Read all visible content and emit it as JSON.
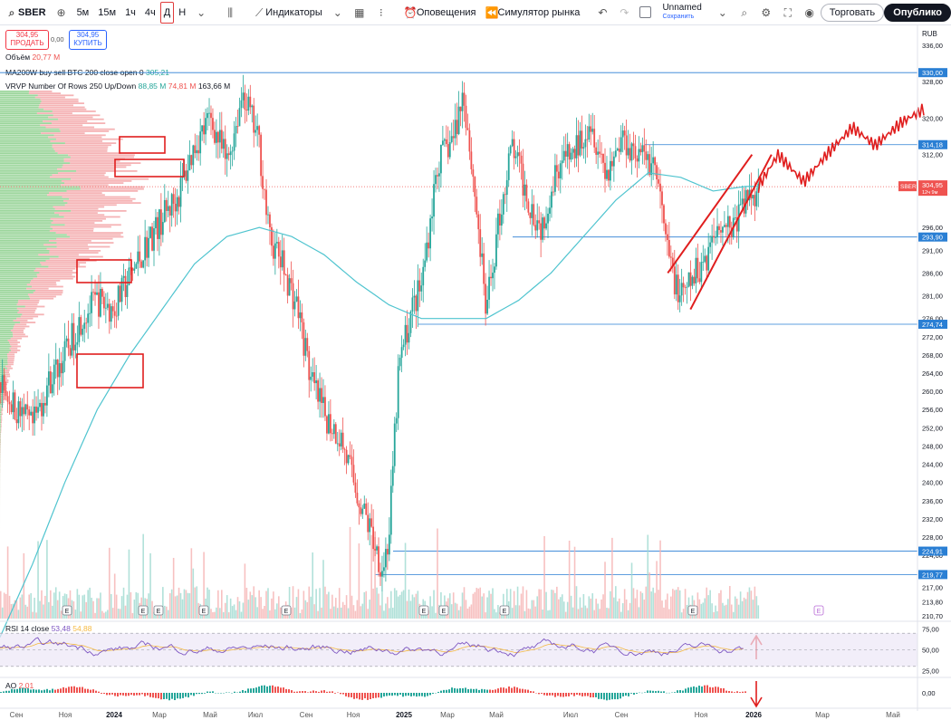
{
  "toolbar": {
    "symbol": "SBER",
    "intervals": [
      "5м",
      "15м",
      "1ч",
      "4ч",
      "Д",
      "Н"
    ],
    "active_interval": "Д",
    "indicators_label": "Индикаторы",
    "alerts_label": "Оповещения",
    "replay_label": "Симулятор рынка",
    "layout_name": "Unnamed",
    "layout_saved": "Сохранить",
    "trade_button": "Торговать",
    "publish_button": "Опублико"
  },
  "quote": {
    "sell_price": "304,95",
    "sell_label": "ПРОДАТЬ",
    "spread": "0,00",
    "buy_price": "304,95",
    "buy_label": "КУПИТЬ",
    "currency": "RUB"
  },
  "legends": {
    "volume_label": "Объём",
    "volume_value": "20,77 M",
    "ma_label": "MA200W buy sell BTC 200 close open 0",
    "ma_value": "305,21",
    "vrvp_label": "VRVP Number Of Rows 250 Up/Down",
    "vrvp_up": "88,85 M",
    "vrvp_down": "74,81 M",
    "vrvp_total": "163,66 M",
    "rsi_label": "RSI 14 close",
    "rsi_value": "53,48",
    "rsi_ma": "54,88",
    "ao_label": "AO",
    "ao_value": "2,01"
  },
  "colors": {
    "up": "#26a69a",
    "down": "#ef5350",
    "ma": "#4fc4cf",
    "level": "#2a7fd4",
    "annotation": "#e01e1e",
    "rsi": "#7e57c2",
    "rsi_ma": "#f5b942"
  },
  "chart_data": {
    "type": "candlestick",
    "symbol": "SBER",
    "ylim": [
      210.7,
      337
    ],
    "y_ticks": [
      "336,00",
      "328,00",
      "320,00",
      "312,00",
      "304,00",
      "296,00",
      "291,00",
      "286,00",
      "281,00",
      "276,00",
      "272,00",
      "268,00",
      "264,00",
      "260,00",
      "256,00",
      "252,00",
      "248,00",
      "244,00",
      "240,00",
      "236,00",
      "232,00",
      "228,00",
      "224,00",
      "220,00",
      "217,00",
      "213,80",
      "210,70"
    ],
    "x_ticks": [
      "Сен",
      "Ноя",
      "2024",
      "Мар",
      "Май",
      "Июл",
      "Сен",
      "Ноя",
      "2025",
      "Мар",
      "Май",
      "Июл",
      "Сен",
      "Ноя",
      "2026",
      "Мар",
      "Май"
    ],
    "close_path": [
      {
        "x": 0,
        "y": 262
      },
      {
        "x": 0.5,
        "y": 256
      },
      {
        "x": 1,
        "y": 252
      },
      {
        "x": 1.5,
        "y": 262
      },
      {
        "x": 2,
        "y": 268
      },
      {
        "x": 2.5,
        "y": 276
      },
      {
        "x": 3,
        "y": 280
      },
      {
        "x": 3.5,
        "y": 278
      },
      {
        "x": 4,
        "y": 285
      },
      {
        "x": 4.5,
        "y": 292
      },
      {
        "x": 5,
        "y": 298
      },
      {
        "x": 5.5,
        "y": 303
      },
      {
        "x": 6,
        "y": 314
      },
      {
        "x": 6.5,
        "y": 320
      },
      {
        "x": 7,
        "y": 310
      },
      {
        "x": 7.5,
        "y": 326
      },
      {
        "x": 8,
        "y": 314
      },
      {
        "x": 8.3,
        "y": 294
      },
      {
        "x": 8.7,
        "y": 288
      },
      {
        "x": 9.2,
        "y": 278
      },
      {
        "x": 9.6,
        "y": 262
      },
      {
        "x": 10,
        "y": 255
      },
      {
        "x": 10.5,
        "y": 250
      },
      {
        "x": 11,
        "y": 238
      },
      {
        "x": 11.5,
        "y": 228
      },
      {
        "x": 11.8,
        "y": 221
      },
      {
        "x": 12,
        "y": 228
      },
      {
        "x": 12.3,
        "y": 265
      },
      {
        "x": 12.7,
        "y": 278
      },
      {
        "x": 13,
        "y": 283
      },
      {
        "x": 13.5,
        "y": 310
      },
      {
        "x": 14,
        "y": 316
      },
      {
        "x": 14.3,
        "y": 326
      },
      {
        "x": 14.7,
        "y": 300
      },
      {
        "x": 15,
        "y": 277
      },
      {
        "x": 15.4,
        "y": 298
      },
      {
        "x": 15.8,
        "y": 314
      },
      {
        "x": 16.3,
        "y": 302
      },
      {
        "x": 16.7,
        "y": 296
      },
      {
        "x": 17.2,
        "y": 310
      },
      {
        "x": 17.7,
        "y": 312
      },
      {
        "x": 18.2,
        "y": 320
      },
      {
        "x": 18.7,
        "y": 308
      },
      {
        "x": 19.2,
        "y": 316
      },
      {
        "x": 19.7,
        "y": 312
      },
      {
        "x": 20.2,
        "y": 310
      },
      {
        "x": 20.6,
        "y": 290
      },
      {
        "x": 21,
        "y": 280
      },
      {
        "x": 21.4,
        "y": 285
      },
      {
        "x": 21.8,
        "y": 290
      },
      {
        "x": 22.2,
        "y": 298
      },
      {
        "x": 22.6,
        "y": 296
      },
      {
        "x": 23,
        "y": 302
      },
      {
        "x": 23.4,
        "y": 305
      }
    ],
    "moving_average": [
      {
        "x": 0,
        "y": 206
      },
      {
        "x": 1,
        "y": 222
      },
      {
        "x": 2,
        "y": 240
      },
      {
        "x": 3,
        "y": 256
      },
      {
        "x": 4,
        "y": 268
      },
      {
        "x": 5,
        "y": 278
      },
      {
        "x": 6,
        "y": 288
      },
      {
        "x": 7,
        "y": 294
      },
      {
        "x": 8,
        "y": 296
      },
      {
        "x": 9,
        "y": 294
      },
      {
        "x": 10,
        "y": 290
      },
      {
        "x": 11,
        "y": 284
      },
      {
        "x": 12,
        "y": 279
      },
      {
        "x": 13,
        "y": 276
      },
      {
        "x": 14,
        "y": 276
      },
      {
        "x": 15,
        "y": 276
      },
      {
        "x": 16,
        "y": 280
      },
      {
        "x": 17,
        "y": 286
      },
      {
        "x": 18,
        "y": 294
      },
      {
        "x": 19,
        "y": 302
      },
      {
        "x": 20,
        "y": 308
      },
      {
        "x": 21,
        "y": 307
      },
      {
        "x": 22,
        "y": 304
      },
      {
        "x": 23,
        "y": 305
      }
    ],
    "levels": [
      {
        "label": "330,00",
        "price": 330.0
      },
      {
        "label": "314,18",
        "price": 314.18
      },
      {
        "label": "293,90",
        "price": 293.9
      },
      {
        "label": "274,74",
        "price": 274.74
      },
      {
        "label": "224,91",
        "price": 224.91
      },
      {
        "label": "219,77",
        "price": 219.77
      }
    ],
    "last_price": {
      "label": "304,95",
      "sub": "12ч 9м",
      "price": 304.95
    },
    "forecast_zigzag": [
      {
        "x": 23.4,
        "y": 305
      },
      {
        "x": 24,
        "y": 312
      },
      {
        "x": 24.8,
        "y": 306
      },
      {
        "x": 25.5,
        "y": 312
      },
      {
        "x": 26.3,
        "y": 318
      },
      {
        "x": 27,
        "y": 314
      },
      {
        "x": 27.8,
        "y": 319
      },
      {
        "x": 28.5,
        "y": 322
      }
    ],
    "channel": [
      {
        "x1": 20.6,
        "y1": 286,
        "x2": 23.2,
        "y2": 312
      },
      {
        "x1": 21.3,
        "y1": 278,
        "x2": 23.8,
        "y2": 312
      }
    ],
    "rsi": {
      "ylim": [
        20,
        80
      ],
      "ticks": [
        "75,00",
        "50,00",
        "25,00"
      ],
      "band": [
        30,
        70
      ],
      "value": 53.48,
      "ma_value": 54.88
    },
    "ao": {
      "ticks": [
        "0,00"
      ],
      "value": 2.01
    },
    "earnings_markers": [
      "E",
      "E",
      "E",
      "E",
      "E",
      "E",
      "E",
      "E",
      "E",
      "E",
      "E",
      "E"
    ],
    "highlight_boxes": 5
  }
}
